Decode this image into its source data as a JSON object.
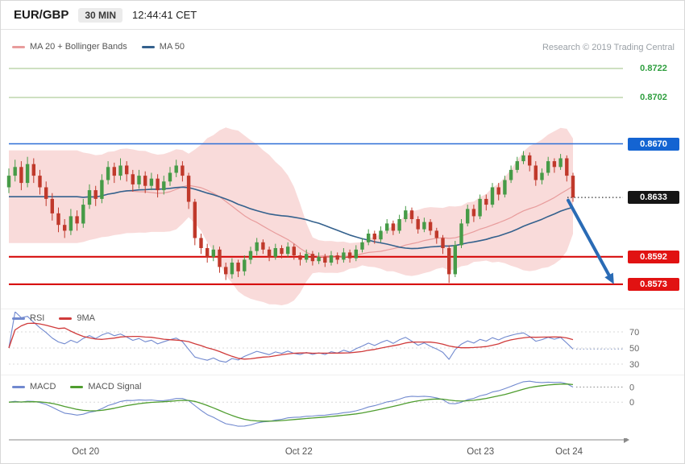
{
  "header": {
    "symbol": "EUR/GBP",
    "timeframe": "30 MIN",
    "timestamp": "12:44:41 CET"
  },
  "legend_main": {
    "ma20_label": "MA 20 + Bollinger Bands",
    "ma50_label": "MA 50"
  },
  "research_credit": "Research © 2019 Trading Central",
  "colors": {
    "up_candle": "#469b47",
    "down_candle": "#c0392b",
    "band": "#f2b0ac",
    "ma20": "#e89c9c",
    "ma50": "#34618d",
    "rsi": "#7189cf",
    "rsi_ma": "#d03b3b",
    "macd": "#7189cf",
    "macd_signal": "#4f9d2f",
    "arrow": "#2a6bb5",
    "axis": "#8a8a8a"
  },
  "chart_data": [
    {
      "type": "candlestick",
      "symbol": "EUR/GBP",
      "interval": "30 MIN",
      "plot_ylim": [
        0.85574,
        0.87298
      ],
      "x_ticks": [
        "Oct 20",
        "Oct 22",
        "Oct 23",
        "Oct 24"
      ],
      "x_tick_pos": [
        0.136,
        0.514,
        0.836,
        0.993
      ],
      "current_price": 0.8633,
      "projection": {
        "from_price": 0.8631,
        "to_price": 0.8578,
        "direction": "down"
      },
      "indicators": {
        "ma20": 20,
        "ma50": 50,
        "bollinger_stdev": 2
      },
      "levels": [
        {
          "label": "0.8722",
          "value": 0.8722,
          "role": "resistance",
          "style": "text",
          "text_color": "#2e9e3e",
          "line_color": "#9dc183",
          "line_width": 1
        },
        {
          "label": "0.8702",
          "value": 0.8702,
          "role": "resistance",
          "style": "text",
          "text_color": "#2e9e3e",
          "line_color": "#9dc183",
          "line_width": 1
        },
        {
          "label": "0.8670",
          "value": 0.867,
          "role": "resistance",
          "style": "badge",
          "badge_color": "#1464d2",
          "line_color": "#2f6fd6",
          "line_width": 1.4
        },
        {
          "label": "0.8633",
          "value": 0.8633,
          "role": "current-price",
          "style": "badge",
          "badge_color": "#151515",
          "line_color": "#333333",
          "line_width": 1.2,
          "line_dotted": true
        },
        {
          "label": "0.8592",
          "value": 0.8592,
          "role": "support",
          "style": "badge",
          "badge_color": "#e11212",
          "line_color": "#d40000",
          "line_width": 2
        },
        {
          "label": "0.8573",
          "value": 0.8573,
          "role": "support",
          "style": "badge",
          "badge_color": "#e11212",
          "line_color": "#d40000",
          "line_width": 2
        }
      ],
      "candles": [
        [
          0.864,
          0.8653,
          0.8636,
          0.8648
        ],
        [
          0.8648,
          0.8659,
          0.8644,
          0.8654
        ],
        [
          0.8654,
          0.8658,
          0.8638,
          0.8643
        ],
        [
          0.8643,
          0.8661,
          0.864,
          0.8656
        ],
        [
          0.8656,
          0.866,
          0.8643,
          0.8648
        ],
        [
          0.8648,
          0.8652,
          0.8635,
          0.864
        ],
        [
          0.864,
          0.8644,
          0.8627,
          0.8632
        ],
        [
          0.8632,
          0.8636,
          0.8617,
          0.8622
        ],
        [
          0.8622,
          0.8626,
          0.8609,
          0.8614
        ],
        [
          0.8614,
          0.8618,
          0.8605,
          0.861
        ],
        [
          0.861,
          0.8625,
          0.8607,
          0.862
        ],
        [
          0.862,
          0.8624,
          0.861,
          0.8615
        ],
        [
          0.8615,
          0.8632,
          0.8612,
          0.8628
        ],
        [
          0.8628,
          0.8642,
          0.8625,
          0.8638
        ],
        [
          0.8638,
          0.8641,
          0.8627,
          0.8632
        ],
        [
          0.8632,
          0.8649,
          0.8629,
          0.8645
        ],
        [
          0.8645,
          0.8658,
          0.8642,
          0.8654
        ],
        [
          0.8654,
          0.8657,
          0.8643,
          0.8648
        ],
        [
          0.8648,
          0.866,
          0.8645,
          0.8655
        ],
        [
          0.8655,
          0.8658,
          0.8644,
          0.8649
        ],
        [
          0.8649,
          0.8652,
          0.8637,
          0.8642
        ],
        [
          0.8642,
          0.8652,
          0.8639,
          0.8648
        ],
        [
          0.8648,
          0.8651,
          0.8636,
          0.8641
        ],
        [
          0.8641,
          0.865,
          0.8638,
          0.8646
        ],
        [
          0.8646,
          0.8649,
          0.8633,
          0.8638
        ],
        [
          0.8638,
          0.8648,
          0.8635,
          0.8644
        ],
        [
          0.8644,
          0.8654,
          0.8641,
          0.865
        ],
        [
          0.865,
          0.8659,
          0.8647,
          0.8655
        ],
        [
          0.8655,
          0.8658,
          0.8644,
          0.8648
        ],
        [
          0.8648,
          0.865,
          0.8625,
          0.863
        ],
        [
          0.863,
          0.8632,
          0.86,
          0.8605
        ],
        [
          0.8605,
          0.8608,
          0.8594,
          0.8598
        ],
        [
          0.8598,
          0.8601,
          0.8588,
          0.8592
        ],
        [
          0.8592,
          0.86,
          0.8589,
          0.8597
        ],
        [
          0.8597,
          0.8599,
          0.8581,
          0.8585
        ],
        [
          0.8585,
          0.8588,
          0.8576,
          0.858
        ],
        [
          0.858,
          0.8591,
          0.8577,
          0.8588
        ],
        [
          0.8588,
          0.859,
          0.8578,
          0.8582
        ],
        [
          0.8582,
          0.8593,
          0.8579,
          0.859
        ],
        [
          0.859,
          0.8599,
          0.8587,
          0.8596
        ],
        [
          0.8596,
          0.8605,
          0.8593,
          0.8602
        ],
        [
          0.8602,
          0.8604,
          0.8594,
          0.8597
        ],
        [
          0.8597,
          0.8599,
          0.8589,
          0.8592
        ],
        [
          0.8592,
          0.8601,
          0.859,
          0.8598
        ],
        [
          0.8598,
          0.86,
          0.8591,
          0.8594
        ],
        [
          0.8594,
          0.8602,
          0.8592,
          0.8599
        ],
        [
          0.8599,
          0.8601,
          0.859,
          0.8593
        ],
        [
          0.8593,
          0.8595,
          0.8586,
          0.859
        ],
        [
          0.859,
          0.8597,
          0.8588,
          0.8594
        ],
        [
          0.8594,
          0.8596,
          0.8586,
          0.8589
        ],
        [
          0.8589,
          0.8595,
          0.8587,
          0.8592
        ],
        [
          0.8592,
          0.8594,
          0.8585,
          0.8588
        ],
        [
          0.8588,
          0.8596,
          0.8586,
          0.8593
        ],
        [
          0.8593,
          0.8595,
          0.8587,
          0.859
        ],
        [
          0.859,
          0.8598,
          0.8588,
          0.8595
        ],
        [
          0.8595,
          0.8597,
          0.8588,
          0.8591
        ],
        [
          0.8591,
          0.86,
          0.8589,
          0.8597
        ],
        [
          0.8597,
          0.8605,
          0.8595,
          0.8602
        ],
        [
          0.8602,
          0.8611,
          0.86,
          0.8608
        ],
        [
          0.8608,
          0.861,
          0.8601,
          0.8604
        ],
        [
          0.8604,
          0.8613,
          0.8602,
          0.861
        ],
        [
          0.861,
          0.8618,
          0.8608,
          0.8615
        ],
        [
          0.8615,
          0.8617,
          0.8607,
          0.861
        ],
        [
          0.861,
          0.8621,
          0.8608,
          0.8618
        ],
        [
          0.8618,
          0.8627,
          0.8616,
          0.8624
        ],
        [
          0.8624,
          0.8626,
          0.8615,
          0.8618
        ],
        [
          0.8618,
          0.862,
          0.8608,
          0.8611
        ],
        [
          0.8611,
          0.8619,
          0.8609,
          0.8616
        ],
        [
          0.8616,
          0.8618,
          0.8607,
          0.861
        ],
        [
          0.861,
          0.8612,
          0.8601,
          0.8605
        ],
        [
          0.8605,
          0.8607,
          0.8594,
          0.8598
        ],
        [
          0.8598,
          0.86,
          0.8574,
          0.858
        ],
        [
          0.858,
          0.8603,
          0.8578,
          0.86
        ],
        [
          0.86,
          0.8618,
          0.8598,
          0.8615
        ],
        [
          0.8615,
          0.8628,
          0.8613,
          0.8625
        ],
        [
          0.8625,
          0.8628,
          0.8616,
          0.862
        ],
        [
          0.862,
          0.8635,
          0.8618,
          0.8632
        ],
        [
          0.8632,
          0.8635,
          0.8624,
          0.8628
        ],
        [
          0.8628,
          0.8643,
          0.8626,
          0.864
        ],
        [
          0.864,
          0.8643,
          0.8631,
          0.8635
        ],
        [
          0.8635,
          0.8648,
          0.8633,
          0.8645
        ],
        [
          0.8645,
          0.8655,
          0.8643,
          0.8652
        ],
        [
          0.8652,
          0.8661,
          0.865,
          0.8658
        ],
        [
          0.8658,
          0.8665,
          0.8656,
          0.8662
        ],
        [
          0.8662,
          0.8664,
          0.8651,
          0.8655
        ],
        [
          0.8655,
          0.8658,
          0.8641,
          0.8645
        ],
        [
          0.8645,
          0.8653,
          0.8642,
          0.865
        ],
        [
          0.865,
          0.8661,
          0.8648,
          0.8658
        ],
        [
          0.8658,
          0.866,
          0.865,
          0.8654
        ],
        [
          0.8654,
          0.8663,
          0.8652,
          0.866
        ],
        [
          0.866,
          0.8662,
          0.8644,
          0.8648
        ],
        [
          0.8648,
          0.865,
          0.863,
          0.8633
        ]
      ]
    },
    {
      "type": "line",
      "panel": "RSI",
      "series": [
        {
          "name": "RSI",
          "color": "#7189cf",
          "period": 14
        },
        {
          "name": "9MA",
          "color": "#d03b3b",
          "period": 9
        }
      ],
      "guides": [
        70,
        50,
        30
      ],
      "ylim": [
        15,
        95
      ]
    },
    {
      "type": "line",
      "panel": "MACD",
      "series": [
        {
          "name": "MACD",
          "color": "#7189cf",
          "fast": 12,
          "slow": 26
        },
        {
          "name": "MACD Signal",
          "color": "#4f9d2f",
          "period": 9
        }
      ],
      "zero_label": "0",
      "current_label": "0",
      "ylim": [
        -0.0023,
        0.0016
      ]
    }
  ]
}
